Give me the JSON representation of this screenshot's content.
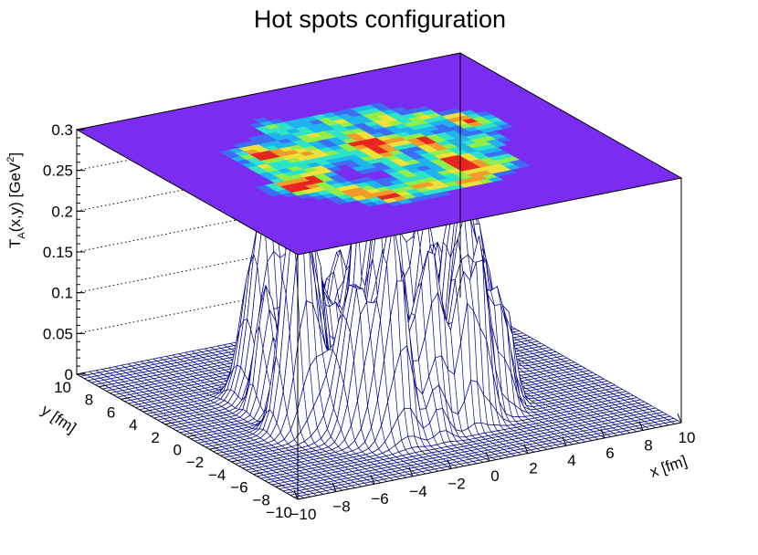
{
  "chart_data": {
    "type": "surface",
    "title": "Hot spots configuration",
    "xlabel": "x [fm]",
    "ylabel": "y [fm]",
    "zlabel": {
      "main": "T",
      "sub": "A",
      "mid": "(x,y) [GeV",
      "sup": "2",
      "end": "]"
    },
    "xlim": [
      -10,
      10
    ],
    "ylim": [
      -10,
      10
    ],
    "zlim": [
      0,
      0.3
    ],
    "x_ticks": [
      "−10",
      "−8",
      "−6",
      "−4",
      "−2",
      "0",
      "2",
      "4",
      "6",
      "8",
      "10"
    ],
    "y_ticks": [
      "−10",
      "−8",
      "−6",
      "−4",
      "−2",
      "0",
      "2",
      "4",
      "6",
      "8",
      "10"
    ],
    "z_ticks": [
      "0",
      "0.05",
      "0.1",
      "0.15",
      "0.2",
      "0.25",
      "0.3"
    ],
    "z_tick_values": [
      0,
      0.05,
      0.1,
      0.15,
      0.2,
      0.25,
      0.3
    ],
    "mesh_color": "#00008b",
    "floor_color": "#08086e",
    "top_plane_color": "#7a2cf0",
    "colormap": [
      "#7a2cf0",
      "#3d6df2",
      "#1fb4ee",
      "#2fe3c8",
      "#8fef4a",
      "#ece23a",
      "#f29a2a",
      "#e8261f"
    ],
    "grid": true,
    "max_value": 0.3,
    "peak_location": [
      0.5,
      1.5
    ]
  }
}
